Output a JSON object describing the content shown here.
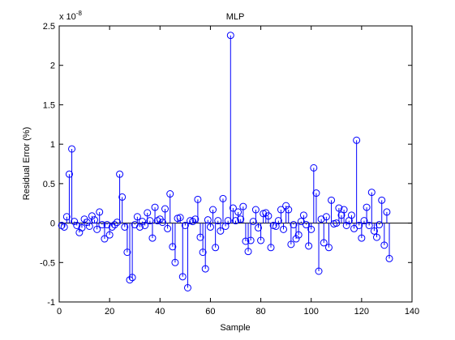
{
  "chart_data": {
    "type": "stem",
    "title": "MLP",
    "x_label": "Sample",
    "y_label": "Residual Error (%)",
    "y_multiplier": "x 10",
    "y_exponent": "-8",
    "x": [
      1,
      2,
      3,
      4,
      5,
      6,
      7,
      8,
      9,
      10,
      11,
      12,
      13,
      14,
      15,
      16,
      17,
      18,
      19,
      20,
      21,
      22,
      23,
      24,
      25,
      26,
      27,
      28,
      29,
      30,
      31,
      32,
      33,
      34,
      35,
      36,
      37,
      38,
      39,
      40,
      41,
      42,
      43,
      44,
      45,
      46,
      47,
      48,
      49,
      50,
      51,
      52,
      53,
      54,
      55,
      56,
      57,
      58,
      59,
      60,
      61,
      62,
      63,
      64,
      65,
      66,
      67,
      68,
      69,
      70,
      71,
      72,
      73,
      74,
      75,
      76,
      77,
      78,
      79,
      80,
      81,
      82,
      83,
      84,
      85,
      86,
      87,
      88,
      89,
      90,
      91,
      92,
      93,
      94,
      95,
      96,
      97,
      98,
      99,
      100,
      101,
      102,
      103,
      104,
      105,
      106,
      107,
      108,
      109,
      110,
      111,
      112,
      113,
      114,
      115,
      116,
      117,
      118,
      119,
      120,
      121,
      122,
      123,
      124,
      125,
      126,
      127,
      128,
      129,
      130,
      131
    ],
    "values": [
      -0.03,
      -0.05,
      0.08,
      0.62,
      0.94,
      0.02,
      -0.03,
      -0.12,
      -0.06,
      0.05,
      0.01,
      -0.04,
      0.09,
      0.04,
      -0.08,
      0.14,
      -0.02,
      -0.2,
      -0.02,
      -0.15,
      -0.05,
      -0.02,
      0.01,
      0.62,
      0.33,
      -0.05,
      -0.37,
      -0.72,
      -0.69,
      -0.02,
      0.08,
      -0.05,
      0.02,
      -0.03,
      0.13,
      0.03,
      -0.19,
      0.2,
      0.03,
      0.05,
      0.01,
      0.18,
      -0.07,
      0.37,
      -0.3,
      -0.5,
      0.06,
      0.07,
      -0.68,
      -0.03,
      -0.82,
      0.03,
      0.02,
      0.05,
      0.3,
      -0.18,
      -0.37,
      -0.58,
      0.04,
      -0.05,
      0.17,
      -0.31,
      0.03,
      -0.1,
      0.31,
      -0.04,
      0.03,
      2.38,
      0.19,
      0.03,
      0.14,
      0.05,
      0.21,
      -0.23,
      -0.36,
      -0.22,
      0.02,
      0.17,
      -0.06,
      -0.22,
      0.12,
      0.13,
      0.09,
      -0.31,
      -0.03,
      -0.04,
      0.03,
      0.17,
      -0.08,
      0.22,
      0.17,
      -0.27,
      -0.02,
      -0.2,
      -0.15,
      0.02,
      0.1,
      -0.02,
      -0.29,
      -0.08,
      0.7,
      0.38,
      -0.61,
      0.05,
      -0.25,
      0.08,
      -0.31,
      0.29,
      -0.01,
      0,
      0.19,
      0.1,
      0.17,
      -0.03,
      0.03,
      0.1,
      -0.07,
      1.05,
      -0.03,
      -0.19,
      0.03,
      0.2,
      -0.03,
      0.39,
      -0.1,
      -0.18,
      -0.02,
      0.29,
      -0.28,
      0.14,
      -0.45
    ],
    "color": "#0000ff",
    "xlim": [
      0,
      140
    ],
    "xticks": [
      0,
      20,
      40,
      60,
      80,
      100,
      120,
      140
    ],
    "ylim": [
      -1,
      2.5
    ],
    "yticks": [
      -1,
      -0.5,
      0,
      0.5,
      1,
      1.5,
      2,
      2.5
    ]
  }
}
